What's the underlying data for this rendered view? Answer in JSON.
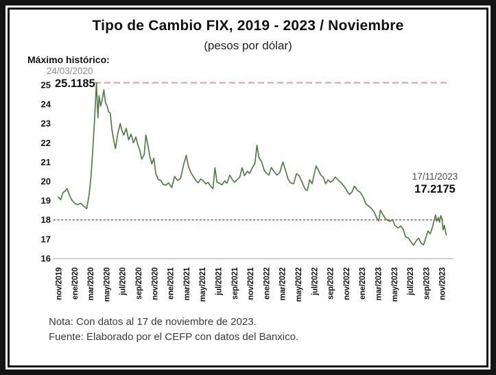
{
  "notes": {
    "nota": "Nota: Con datos al 17 de noviembre de 2023.",
    "fuente": "Fuente: Elaborado por el CEFP con datos del Banxico."
  },
  "colors": {
    "line_green": "#527c45",
    "max_line_pink": "#dfa0a8",
    "threshold_line_red": "#bf4044",
    "axis_gray": "#b3b3b3",
    "date_gray": "#8f8f8f",
    "text_black": "#101010"
  },
  "chart_data": {
    "type": "line",
    "title": "Tipo de Cambio FIX, 2019 - 2023 / Noviembre",
    "subtitle": "(pesos por dólar)",
    "ylabel": "pesos por dólar",
    "ylim": [
      16,
      25
    ],
    "grid": false,
    "legend": "none",
    "y_ticks": [
      16,
      17,
      18,
      19,
      20,
      21,
      22,
      23,
      24,
      25
    ],
    "x_tick_labels": [
      "nov/2019",
      "ene/2020",
      "mar/2020",
      "may/2020",
      "jul/2020",
      "sep/2020",
      "nov/2020",
      "ene/2021",
      "mar/2021",
      "may/2021",
      "jul/2021",
      "sep/2021",
      "nov/2021",
      "ene/2022",
      "mar/2022",
      "may/2022",
      "jul/2022",
      "sep/2022",
      "nov/2022",
      "ene/2023",
      "mar/2023",
      "may/2023",
      "jul/2023",
      "sep/2023",
      "nov/2023"
    ],
    "months_per_tick": 2,
    "annotations": {
      "max": {
        "label": "Máximo histórico:",
        "date": "24/03/2020",
        "value": "25.1185"
      },
      "last": {
        "date": "17/11/2023",
        "value": "17.2175"
      }
    },
    "reference_lines": [
      {
        "name": "maximo-historico",
        "value": 25.1185,
        "style": "dashed",
        "color": "#dfa0a8"
      },
      {
        "name": "nivel-18-pesos",
        "value": 18.0,
        "style": "dotted",
        "color": "#bf4044"
      }
    ],
    "series": [
      {
        "name": "Tipo de cambio FIX (pesos por dólar)",
        "color": "#527c45",
        "x_unit": "meses desde nov/2019",
        "points": [
          [
            0,
            19.18
          ],
          [
            0.3,
            19.05
          ],
          [
            0.6,
            19.42
          ],
          [
            0.85,
            19.5
          ],
          [
            1.1,
            19.62
          ],
          [
            1.4,
            19.28
          ],
          [
            1.7,
            19.02
          ],
          [
            2,
            18.88
          ],
          [
            2.4,
            18.78
          ],
          [
            2.8,
            18.86
          ],
          [
            3.2,
            18.7
          ],
          [
            3.55,
            18.58
          ],
          [
            3.85,
            19.3
          ],
          [
            4.1,
            20.3
          ],
          [
            4.35,
            21.9
          ],
          [
            4.55,
            23.3
          ],
          [
            4.77,
            25.1185
          ],
          [
            4.95,
            23.3
          ],
          [
            5.1,
            24.45
          ],
          [
            5.3,
            23.9
          ],
          [
            5.5,
            24.25
          ],
          [
            5.7,
            24.75
          ],
          [
            5.9,
            24.1
          ],
          [
            6.1,
            23.9
          ],
          [
            6.3,
            23.6
          ],
          [
            6.5,
            23.55
          ],
          [
            6.7,
            22.7
          ],
          [
            6.9,
            22.2
          ],
          [
            7.15,
            21.7
          ],
          [
            7.45,
            22.5
          ],
          [
            7.75,
            23
          ],
          [
            7.95,
            22.65
          ],
          [
            8.2,
            22.4
          ],
          [
            8.5,
            22.75
          ],
          [
            8.8,
            22.15
          ],
          [
            9.1,
            22.45
          ],
          [
            9.4,
            22
          ],
          [
            9.7,
            22.3
          ],
          [
            9.95,
            21.9
          ],
          [
            10.2,
            21.6
          ],
          [
            10.45,
            21.15
          ],
          [
            10.75,
            21.4
          ],
          [
            10.95,
            22.4
          ],
          [
            11.2,
            21.9
          ],
          [
            11.45,
            21.3
          ],
          [
            11.7,
            20.9
          ],
          [
            11.95,
            21.2
          ],
          [
            12.2,
            20.4
          ],
          [
            12.5,
            20.1
          ],
          [
            12.8,
            20.05
          ],
          [
            13.1,
            19.85
          ],
          [
            13.45,
            19.8
          ],
          [
            13.8,
            19.92
          ],
          [
            14.2,
            19.68
          ],
          [
            14.55,
            20.25
          ],
          [
            14.9,
            20.05
          ],
          [
            15.3,
            20.15
          ],
          [
            15.7,
            20.9
          ],
          [
            16,
            21.35
          ],
          [
            16.3,
            20.75
          ],
          [
            16.6,
            20.45
          ],
          [
            16.9,
            20.25
          ],
          [
            17.2,
            20.05
          ],
          [
            17.5,
            19.92
          ],
          [
            17.8,
            20.12
          ],
          [
            18.1,
            20.05
          ],
          [
            18.45,
            19.87
          ],
          [
            18.75,
            19.95
          ],
          [
            19.05,
            19.75
          ],
          [
            19.35,
            19.62
          ],
          [
            19.6,
            20.7
          ],
          [
            19.85,
            19.95
          ],
          [
            20.15,
            19.9
          ],
          [
            20.5,
            19.82
          ],
          [
            20.8,
            20.02
          ],
          [
            21.1,
            19.9
          ],
          [
            21.45,
            20.32
          ],
          [
            21.75,
            20.1
          ],
          [
            22.05,
            19.95
          ],
          [
            22.4,
            20.1
          ],
          [
            22.7,
            20.22
          ],
          [
            23,
            20.7
          ],
          [
            23.3,
            20.3
          ],
          [
            23.65,
            20.52
          ],
          [
            23.95,
            20.42
          ],
          [
            24.3,
            20.72
          ],
          [
            24.6,
            20.92
          ],
          [
            24.85,
            21.87
          ],
          [
            25.1,
            21.25
          ],
          [
            25.45,
            21
          ],
          [
            25.75,
            20.58
          ],
          [
            26.05,
            20.42
          ],
          [
            26.35,
            20.32
          ],
          [
            26.65,
            20.72
          ],
          [
            27,
            20.5
          ],
          [
            27.35,
            20.32
          ],
          [
            27.7,
            20.45
          ],
          [
            28.1,
            21
          ],
          [
            28.45,
            20.55
          ],
          [
            28.75,
            20.12
          ],
          [
            29.05,
            19.92
          ],
          [
            29.45,
            19.88
          ],
          [
            29.8,
            20.4
          ],
          [
            30.15,
            20.28
          ],
          [
            30.5,
            19.95
          ],
          [
            30.85,
            19.62
          ],
          [
            31.15,
            19.52
          ],
          [
            31.45,
            20.08
          ],
          [
            31.75,
            19.88
          ],
          [
            32.05,
            20.42
          ],
          [
            32.25,
            20.8
          ],
          [
            32.55,
            20.58
          ],
          [
            32.85,
            20.32
          ],
          [
            33.15,
            20.22
          ],
          [
            33.45,
            19.88
          ],
          [
            33.75,
            20.08
          ],
          [
            34.05,
            19.95
          ],
          [
            34.35,
            20.05
          ],
          [
            34.65,
            20.22
          ],
          [
            35,
            20.08
          ],
          [
            35.4,
            19.92
          ],
          [
            35.8,
            19.72
          ],
          [
            36.15,
            19.48
          ],
          [
            36.45,
            19.32
          ],
          [
            36.75,
            19.45
          ],
          [
            37.05,
            19.75
          ],
          [
            37.45,
            19.52
          ],
          [
            37.8,
            19.42
          ],
          [
            38.15,
            19.18
          ],
          [
            38.5,
            18.82
          ],
          [
            38.85,
            18.72
          ],
          [
            39.2,
            18.58
          ],
          [
            39.55,
            18.38
          ],
          [
            39.85,
            18.08
          ],
          [
            40.1,
            17.95
          ],
          [
            40.3,
            18.5
          ],
          [
            40.6,
            18.28
          ],
          [
            40.9,
            18.08
          ],
          [
            41.2,
            17.98
          ],
          [
            41.5,
            17.92
          ],
          [
            41.8,
            18.02
          ],
          [
            42.1,
            17.72
          ],
          [
            42.5,
            17.58
          ],
          [
            42.85,
            17.68
          ],
          [
            43.15,
            17.52
          ],
          [
            43.45,
            17.12
          ],
          [
            43.8,
            17.05
          ],
          [
            44.15,
            16.85
          ],
          [
            44.45,
            16.68
          ],
          [
            44.8,
            16.92
          ],
          [
            45.1,
            17.05
          ],
          [
            45.4,
            16.78
          ],
          [
            45.7,
            16.7
          ],
          [
            46,
            17.1
          ],
          [
            46.25,
            17.42
          ],
          [
            46.55,
            17.28
          ],
          [
            46.85,
            17.68
          ],
          [
            47.05,
            18.02
          ],
          [
            47.2,
            18.25
          ],
          [
            47.35,
            17.92
          ],
          [
            47.55,
            18.12
          ],
          [
            47.7,
            17.88
          ],
          [
            47.85,
            18.22
          ],
          [
            48,
            18.05
          ],
          [
            48.15,
            17.48
          ],
          [
            48.3,
            17.72
          ],
          [
            48.45,
            17.4
          ],
          [
            48.55,
            17.2175
          ]
        ]
      }
    ]
  }
}
